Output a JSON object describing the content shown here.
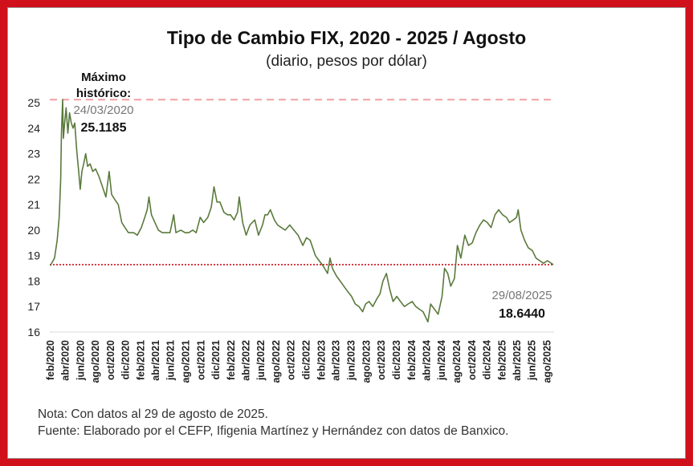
{
  "chart_data": {
    "type": "line",
    "title": "Tipo de Cambio FIX, 2020 - 2025 / Agosto",
    "subtitle": "(diario, pesos por dólar)",
    "ylim": [
      16,
      25
    ],
    "yticks": [
      16,
      17,
      18,
      19,
      20,
      21,
      22,
      23,
      24,
      25
    ],
    "xlim": [
      "2020-02-01",
      "2025-09-01"
    ],
    "xticks": [
      "feb/2020",
      "abr/2020",
      "jun/2020",
      "ago/2020",
      "oct/2020",
      "dic/2020",
      "feb/2021",
      "abr/2021",
      "jun/2021",
      "ago/2021",
      "oct/2021",
      "dic/2021",
      "feb/2022",
      "abr/2022",
      "jun/2022",
      "ago/2022",
      "oct/2022",
      "dic/2022",
      "feb/2023",
      "abr/2023",
      "jun/2023",
      "ago/2023",
      "oct/2023",
      "dic/2023",
      "feb/2024",
      "abr/2024",
      "jun/2024",
      "ago/2024",
      "oct/2024",
      "dic/2024",
      "feb/2025",
      "abr/2025",
      "jun/2025",
      "ago/2025"
    ],
    "series": [
      {
        "color": "#5a7a3c",
        "points": [
          [
            "2020-02-03",
            18.6
          ],
          [
            "2020-02-20",
            18.9
          ],
          [
            "2020-03-02",
            19.6
          ],
          [
            "2020-03-10",
            20.5
          ],
          [
            "2020-03-16",
            22.0
          ],
          [
            "2020-03-19",
            23.8
          ],
          [
            "2020-03-24",
            25.1185
          ],
          [
            "2020-03-27",
            23.6
          ],
          [
            "2020-04-01",
            24.2
          ],
          [
            "2020-04-07",
            24.8
          ],
          [
            "2020-04-14",
            23.8
          ],
          [
            "2020-04-21",
            24.6
          ],
          [
            "2020-04-28",
            24.2
          ],
          [
            "2020-05-05",
            24.0
          ],
          [
            "2020-05-12",
            24.2
          ],
          [
            "2020-05-20",
            23.1
          ],
          [
            "2020-05-28",
            22.3
          ],
          [
            "2020-06-03",
            21.6
          ],
          [
            "2020-06-10",
            22.3
          ],
          [
            "2020-06-17",
            22.6
          ],
          [
            "2020-06-25",
            23.0
          ],
          [
            "2020-07-03",
            22.5
          ],
          [
            "2020-07-13",
            22.6
          ],
          [
            "2020-07-24",
            22.3
          ],
          [
            "2020-08-04",
            22.4
          ],
          [
            "2020-08-18",
            22.1
          ],
          [
            "2020-09-01",
            21.7
          ],
          [
            "2020-09-15",
            21.3
          ],
          [
            "2020-09-28",
            22.3
          ],
          [
            "2020-10-08",
            21.4
          ],
          [
            "2020-10-21",
            21.2
          ],
          [
            "2020-11-04",
            21.0
          ],
          [
            "2020-11-18",
            20.3
          ],
          [
            "2020-12-01",
            20.1
          ],
          [
            "2020-12-15",
            19.9
          ],
          [
            "2021-01-05",
            19.9
          ],
          [
            "2021-01-20",
            19.8
          ],
          [
            "2021-02-05",
            20.1
          ],
          [
            "2021-02-19",
            20.5
          ],
          [
            "2021-03-01",
            20.8
          ],
          [
            "2021-03-08",
            21.3
          ],
          [
            "2021-03-18",
            20.6
          ],
          [
            "2021-04-01",
            20.3
          ],
          [
            "2021-04-15",
            20.0
          ],
          [
            "2021-05-01",
            19.9
          ],
          [
            "2021-05-15",
            19.9
          ],
          [
            "2021-06-01",
            19.9
          ],
          [
            "2021-06-16",
            20.6
          ],
          [
            "2021-06-25",
            19.9
          ],
          [
            "2021-07-15",
            20.0
          ],
          [
            "2021-08-01",
            19.9
          ],
          [
            "2021-08-16",
            19.9
          ],
          [
            "2021-09-01",
            20.0
          ],
          [
            "2021-09-15",
            19.9
          ],
          [
            "2021-10-01",
            20.5
          ],
          [
            "2021-10-15",
            20.3
          ],
          [
            "2021-11-01",
            20.5
          ],
          [
            "2021-11-15",
            20.9
          ],
          [
            "2021-11-26",
            21.7
          ],
          [
            "2021-12-08",
            21.1
          ],
          [
            "2021-12-20",
            21.1
          ],
          [
            "2022-01-05",
            20.7
          ],
          [
            "2022-01-20",
            20.6
          ],
          [
            "2022-02-01",
            20.6
          ],
          [
            "2022-02-15",
            20.4
          ],
          [
            "2022-03-01",
            20.7
          ],
          [
            "2022-03-08",
            21.3
          ],
          [
            "2022-03-22",
            20.3
          ],
          [
            "2022-04-05",
            19.8
          ],
          [
            "2022-04-20",
            20.2
          ],
          [
            "2022-05-10",
            20.4
          ],
          [
            "2022-05-25",
            19.8
          ],
          [
            "2022-06-10",
            20.2
          ],
          [
            "2022-06-20",
            20.6
          ],
          [
            "2022-07-01",
            20.6
          ],
          [
            "2022-07-12",
            20.8
          ],
          [
            "2022-07-28",
            20.4
          ],
          [
            "2022-08-10",
            20.2
          ],
          [
            "2022-08-25",
            20.1
          ],
          [
            "2022-09-10",
            20.0
          ],
          [
            "2022-09-28",
            20.2
          ],
          [
            "2022-10-15",
            20.0
          ],
          [
            "2022-11-01",
            19.8
          ],
          [
            "2022-11-20",
            19.4
          ],
          [
            "2022-12-05",
            19.7
          ],
          [
            "2022-12-20",
            19.6
          ],
          [
            "2023-01-10",
            19.0
          ],
          [
            "2023-01-25",
            18.8
          ],
          [
            "2023-02-10",
            18.6
          ],
          [
            "2023-02-28",
            18.3
          ],
          [
            "2023-03-10",
            18.9
          ],
          [
            "2023-03-20",
            18.5
          ],
          [
            "2023-04-05",
            18.2
          ],
          [
            "2023-04-20",
            18.0
          ],
          [
            "2023-05-05",
            17.8
          ],
          [
            "2023-05-20",
            17.6
          ],
          [
            "2023-06-05",
            17.4
          ],
          [
            "2023-06-20",
            17.1
          ],
          [
            "2023-07-05",
            17.0
          ],
          [
            "2023-07-20",
            16.8
          ],
          [
            "2023-08-01",
            17.1
          ],
          [
            "2023-08-15",
            17.2
          ],
          [
            "2023-08-30",
            17.0
          ],
          [
            "2023-09-15",
            17.3
          ],
          [
            "2023-09-28",
            17.5
          ],
          [
            "2023-10-10",
            18.0
          ],
          [
            "2023-10-24",
            18.3
          ],
          [
            "2023-11-06",
            17.7
          ],
          [
            "2023-11-20",
            17.2
          ],
          [
            "2023-12-05",
            17.4
          ],
          [
            "2023-12-20",
            17.2
          ],
          [
            "2024-01-05",
            17.0
          ],
          [
            "2024-01-20",
            17.1
          ],
          [
            "2024-02-05",
            17.2
          ],
          [
            "2024-02-20",
            17.0
          ],
          [
            "2024-03-05",
            16.9
          ],
          [
            "2024-03-20",
            16.8
          ],
          [
            "2024-04-09",
            16.4
          ],
          [
            "2024-04-20",
            17.1
          ],
          [
            "2024-05-05",
            16.9
          ],
          [
            "2024-05-20",
            16.7
          ],
          [
            "2024-06-05",
            17.4
          ],
          [
            "2024-06-15",
            18.5
          ],
          [
            "2024-06-28",
            18.3
          ],
          [
            "2024-07-10",
            17.8
          ],
          [
            "2024-07-25",
            18.1
          ],
          [
            "2024-08-06",
            19.4
          ],
          [
            "2024-08-20",
            18.9
          ],
          [
            "2024-09-05",
            19.8
          ],
          [
            "2024-09-20",
            19.4
          ],
          [
            "2024-10-05",
            19.5
          ],
          [
            "2024-10-20",
            19.9
          ],
          [
            "2024-11-05",
            20.2
          ],
          [
            "2024-11-20",
            20.4
          ],
          [
            "2024-12-05",
            20.3
          ],
          [
            "2024-12-20",
            20.1
          ],
          [
            "2025-01-05",
            20.6
          ],
          [
            "2025-01-20",
            20.8
          ],
          [
            "2025-02-05",
            20.6
          ],
          [
            "2025-02-20",
            20.5
          ],
          [
            "2025-03-05",
            20.3
          ],
          [
            "2025-03-20",
            20.4
          ],
          [
            "2025-04-02",
            20.5
          ],
          [
            "2025-04-09",
            20.8
          ],
          [
            "2025-04-20",
            20.0
          ],
          [
            "2025-05-05",
            19.6
          ],
          [
            "2025-05-20",
            19.3
          ],
          [
            "2025-06-05",
            19.2
          ],
          [
            "2025-06-20",
            18.9
          ],
          [
            "2025-07-05",
            18.8
          ],
          [
            "2025-07-20",
            18.7
          ],
          [
            "2025-08-05",
            18.8
          ],
          [
            "2025-08-29",
            18.644
          ]
        ]
      }
    ],
    "reference_lines": [
      {
        "value": 25.1185,
        "color": "#f2a0a0",
        "style": "dashed"
      },
      {
        "value": 18.644,
        "color": "#d0101a",
        "style": "dotted"
      }
    ],
    "annotations": {
      "max_label": "Máximo histórico:",
      "max_date": "24/03/2020",
      "max_value": "25.1185",
      "last_date": "29/08/2025",
      "last_value": "18.6440"
    },
    "grid": false,
    "legend": "none"
  },
  "notes": {
    "nota": "Nota: Con datos al 29 de agosto de 2025.",
    "fuente": "Fuente: Elaborado por el CEFP, Ifigenia Martínez y Hernández con datos de Banxico."
  },
  "colors": {
    "frame": "#d0101a",
    "line": "#5a7a3c",
    "max_line": "#f2a0a0",
    "last_line": "#d0101a"
  }
}
